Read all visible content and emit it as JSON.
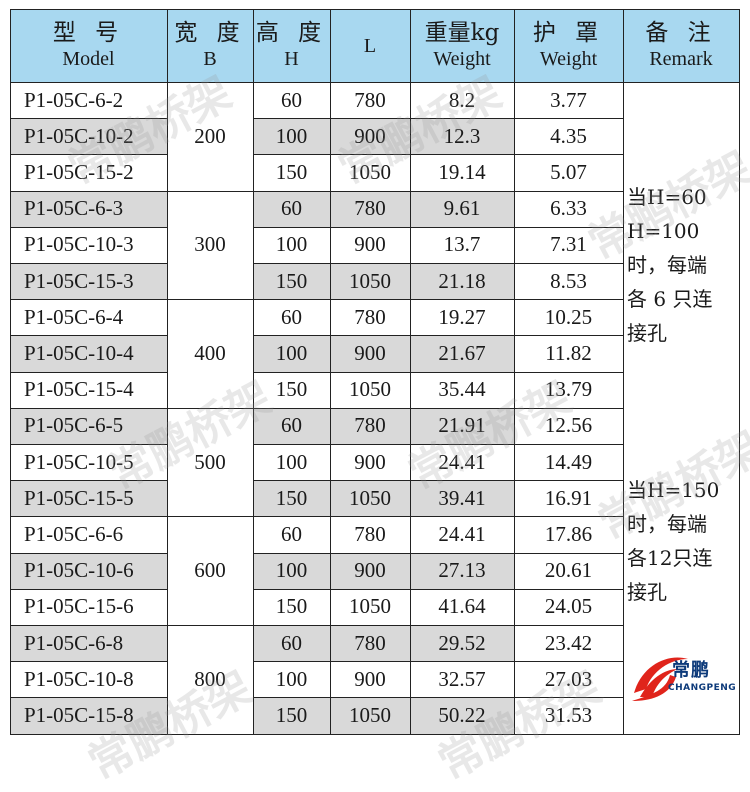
{
  "header": {
    "model": {
      "cn": "型 号",
      "en": "Model"
    },
    "width": {
      "cn": "宽 度",
      "en": "B"
    },
    "height": {
      "cn": "高 度",
      "en": "H"
    },
    "length": {
      "cn": "",
      "en": "L"
    },
    "weight": {
      "cn": "重量kg",
      "en": "Weight"
    },
    "cover": {
      "cn": "护 罩",
      "en": "Weight"
    },
    "remark": {
      "cn": "备 注",
      "en": "Remark"
    }
  },
  "rows": [
    {
      "model": "P1-05C-6-2",
      "h": "60",
      "l": "780",
      "weight": "8.2",
      "cover": "3.77"
    },
    {
      "model": "P1-05C-10-2",
      "h": "100",
      "l": "900",
      "weight": "12.3",
      "cover": "4.35"
    },
    {
      "model": "P1-05C-15-2",
      "h": "150",
      "l": "1050",
      "weight": "19.14",
      "cover": "5.07"
    },
    {
      "model": "P1-05C-6-3",
      "h": "60",
      "l": "780",
      "weight": "9.61",
      "cover": "6.33"
    },
    {
      "model": "P1-05C-10-3",
      "h": "100",
      "l": "900",
      "weight": "13.7",
      "cover": "7.31"
    },
    {
      "model": "P1-05C-15-3",
      "h": "150",
      "l": "1050",
      "weight": "21.18",
      "cover": "8.53"
    },
    {
      "model": "P1-05C-6-4",
      "h": "60",
      "l": "780",
      "weight": "19.27",
      "cover": "10.25"
    },
    {
      "model": "P1-05C-10-4",
      "h": "100",
      "l": "900",
      "weight": "21.67",
      "cover": "11.82"
    },
    {
      "model": "P1-05C-15-4",
      "h": "150",
      "l": "1050",
      "weight": "35.44",
      "cover": "13.79"
    },
    {
      "model": "P1-05C-6-5",
      "h": "60",
      "l": "780",
      "weight": "21.91",
      "cover": "12.56"
    },
    {
      "model": "P1-05C-10-5",
      "h": "100",
      "l": "900",
      "weight": "24.41",
      "cover": "14.49"
    },
    {
      "model": "P1-05C-15-5",
      "h": "150",
      "l": "1050",
      "weight": "39.41",
      "cover": "16.91"
    },
    {
      "model": "P1-05C-6-6",
      "h": "60",
      "l": "780",
      "weight": "24.41",
      "cover": "17.86"
    },
    {
      "model": "P1-05C-10-6",
      "h": "100",
      "l": "900",
      "weight": "27.13",
      "cover": "20.61"
    },
    {
      "model": "P1-05C-15-6",
      "h": "150",
      "l": "1050",
      "weight": "41.64",
      "cover": "24.05"
    },
    {
      "model": "P1-05C-6-8",
      "h": "60",
      "l": "780",
      "weight": "29.52",
      "cover": "23.42"
    },
    {
      "model": "P1-05C-10-8",
      "h": "100",
      "l": "900",
      "weight": "32.57",
      "cover": "27.03"
    },
    {
      "model": "P1-05C-15-8",
      "h": "150",
      "l": "1050",
      "weight": "50.22",
      "cover": "31.53"
    }
  ],
  "widths": [
    "200",
    "300",
    "400",
    "500",
    "600",
    "800"
  ],
  "remarks": {
    "group1": [
      "当H=60",
      "H=100",
      "时，每端",
      "各 6 只连",
      "接孔"
    ],
    "group2": [
      "当H=150",
      "时，每端",
      "各12只连",
      "接孔"
    ]
  },
  "watermark": "常鹏桥架",
  "logo": {
    "cn": "常鹏",
    "en": "CHANGPENG"
  },
  "colors": {
    "header_bg": "#a8d8f0",
    "band": "#d9d9d9",
    "logo_red": "#e0241b",
    "logo_blue": "#0d3a7a"
  }
}
